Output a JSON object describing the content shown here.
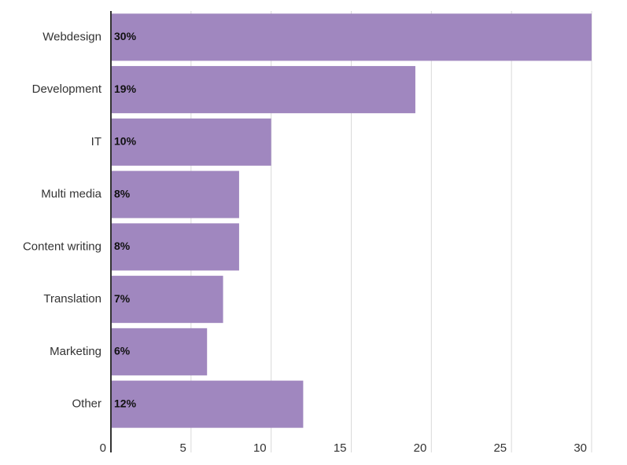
{
  "chart_data": {
    "type": "bar",
    "orientation": "horizontal",
    "categories": [
      "Webdesign",
      "Development",
      "IT",
      "Multi media",
      "Content writing",
      "Translation",
      "Marketing",
      "Other"
    ],
    "values": [
      30,
      19,
      10,
      8,
      8,
      7,
      6,
      12
    ],
    "data_labels": [
      "30%",
      "19%",
      "10%",
      "8%",
      "8%",
      "7%",
      "6%",
      "12%"
    ],
    "x_ticks": [
      0,
      5,
      10,
      15,
      20,
      25,
      30
    ],
    "xlim": [
      0,
      30
    ],
    "title": "",
    "xlabel": "",
    "ylabel": "",
    "grid": true,
    "legend": "none",
    "bar_color": "#a087bf"
  }
}
